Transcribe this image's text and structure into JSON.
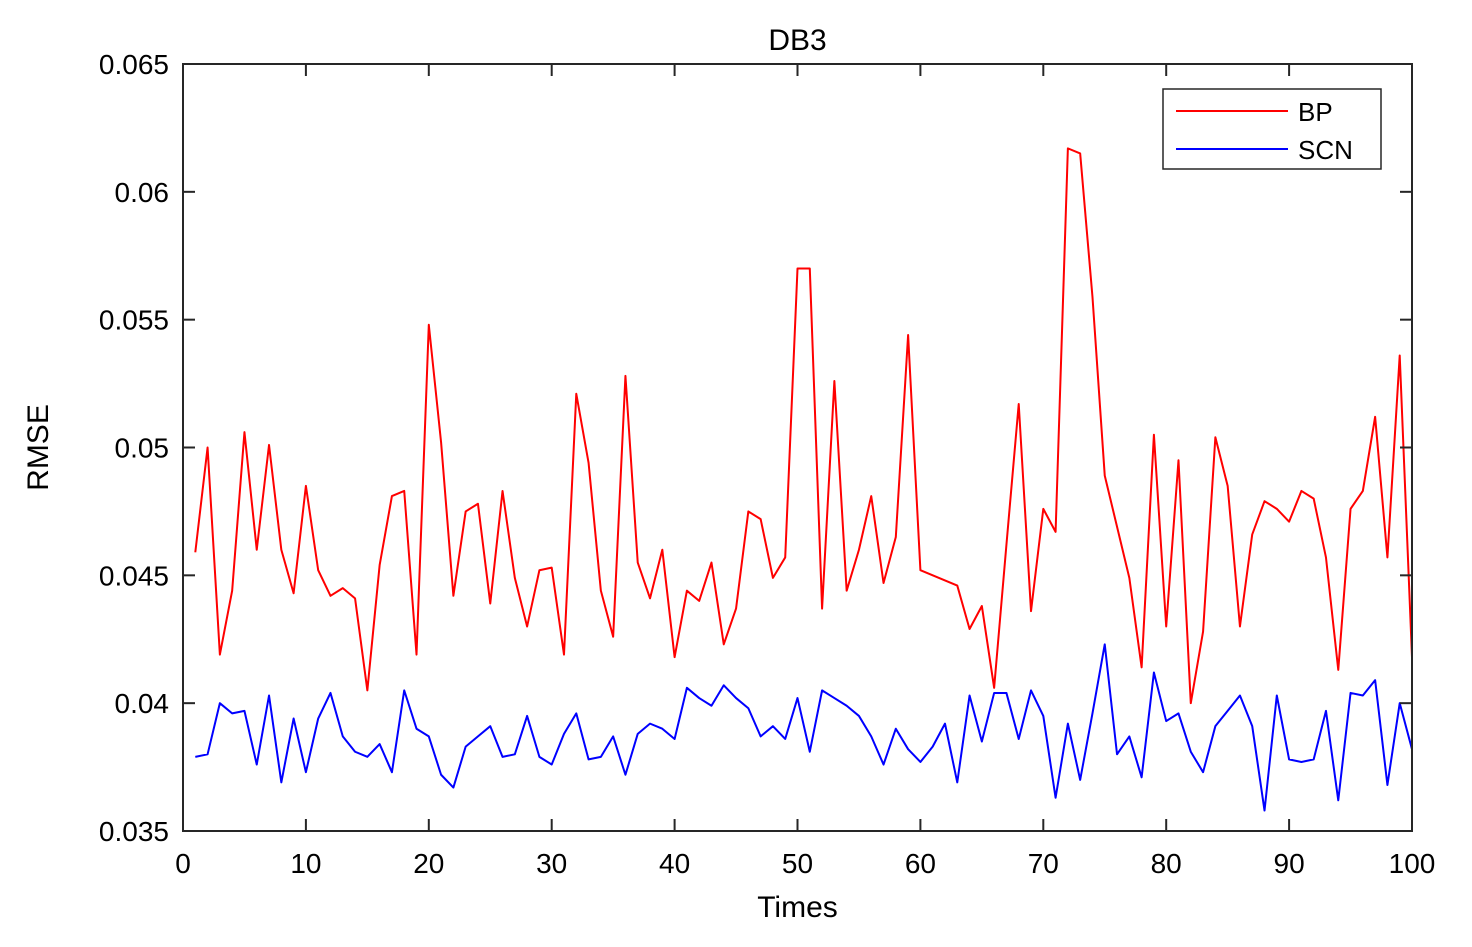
{
  "chart_data": {
    "type": "line",
    "title": "DB3",
    "xlabel": "Times",
    "ylabel": "RMSE",
    "xlim": [
      0,
      100
    ],
    "ylim": [
      0.035,
      0.065
    ],
    "xticks": [
      0,
      10,
      20,
      30,
      40,
      50,
      60,
      70,
      80,
      90,
      100
    ],
    "xtick_labels": [
      "0",
      "10",
      "20",
      "30",
      "40",
      "50",
      "60",
      "70",
      "80",
      "90",
      "100"
    ],
    "yticks": [
      0.035,
      0.04,
      0.045,
      0.05,
      0.055,
      0.06,
      0.065
    ],
    "ytick_labels": [
      "0.035",
      "0.04",
      "0.045",
      "0.05",
      "0.055",
      "0.06",
      "0.065"
    ],
    "grid": false,
    "legend_position": "top-right",
    "x": [
      1,
      2,
      3,
      4,
      5,
      6,
      7,
      8,
      9,
      10,
      11,
      12,
      13,
      14,
      15,
      16,
      17,
      18,
      19,
      20,
      21,
      22,
      23,
      24,
      25,
      26,
      27,
      28,
      29,
      30,
      31,
      32,
      33,
      34,
      35,
      36,
      37,
      38,
      39,
      40,
      41,
      42,
      43,
      44,
      45,
      46,
      47,
      48,
      49,
      50,
      51,
      52,
      53,
      54,
      55,
      56,
      57,
      58,
      59,
      60,
      61,
      62,
      63,
      64,
      65,
      66,
      67,
      68,
      69,
      70,
      71,
      72,
      73,
      74,
      75,
      76,
      77,
      78,
      79,
      80,
      81,
      82,
      83,
      84,
      85,
      86,
      87,
      88,
      89,
      90,
      91,
      92,
      93,
      94,
      95,
      96,
      97,
      98,
      99,
      100
    ],
    "series": [
      {
        "name": "BP",
        "color": "#ff0000",
        "values": [
          0.0459,
          0.05,
          0.0419,
          0.0444,
          0.0506,
          0.046,
          0.0501,
          0.046,
          0.0443,
          0.0485,
          0.0452,
          0.0442,
          0.0445,
          0.0441,
          0.0405,
          0.0454,
          0.0481,
          0.0483,
          0.0419,
          0.0548,
          0.0502,
          0.0442,
          0.0475,
          0.0478,
          0.0439,
          0.0483,
          0.0449,
          0.043,
          0.0452,
          0.0453,
          0.0419,
          0.0521,
          0.0494,
          0.0444,
          0.0426,
          0.0528,
          0.0455,
          0.0441,
          0.046,
          0.0418,
          0.0444,
          0.044,
          0.0455,
          0.0423,
          0.0437,
          0.0475,
          0.0472,
          0.0449,
          0.0457,
          0.057,
          0.057,
          0.0437,
          0.0526,
          0.0444,
          0.046,
          0.0481,
          0.0447,
          0.0465,
          0.0544,
          0.0452,
          0.045,
          0.0448,
          0.0446,
          0.0429,
          0.0438,
          0.0406,
          0.0462,
          0.0517,
          0.0436,
          0.0476,
          0.0467,
          0.0617,
          0.0615,
          0.0559,
          0.0489,
          0.0469,
          0.0449,
          0.0414,
          0.0505,
          0.043,
          0.0495,
          0.04,
          0.0428,
          0.0504,
          0.0485,
          0.043,
          0.0466,
          0.0479,
          0.0476,
          0.0471,
          0.0483,
          0.048,
          0.0457,
          0.0413,
          0.0476,
          0.0483,
          0.0512,
          0.0457,
          0.0536,
          0.0418
        ]
      },
      {
        "name": "SCN",
        "color": "#0000ff",
        "values": [
          0.0379,
          0.038,
          0.04,
          0.0396,
          0.0397,
          0.0376,
          0.0403,
          0.0369,
          0.0394,
          0.0373,
          0.0394,
          0.0404,
          0.0387,
          0.0381,
          0.0379,
          0.0384,
          0.0373,
          0.0405,
          0.039,
          0.0387,
          0.0372,
          0.0367,
          0.0383,
          0.0387,
          0.0391,
          0.0379,
          0.038,
          0.0395,
          0.0379,
          0.0376,
          0.0388,
          0.0396,
          0.0378,
          0.0379,
          0.0387,
          0.0372,
          0.0388,
          0.0392,
          0.039,
          0.0386,
          0.0406,
          0.0402,
          0.0399,
          0.0407,
          0.0402,
          0.0398,
          0.0387,
          0.0391,
          0.0386,
          0.0402,
          0.0381,
          0.0405,
          0.0402,
          0.0399,
          0.0395,
          0.0387,
          0.0376,
          0.039,
          0.0382,
          0.0377,
          0.0383,
          0.0392,
          0.0369,
          0.0403,
          0.0385,
          0.0404,
          0.0404,
          0.0386,
          0.0405,
          0.0395,
          0.0363,
          0.0392,
          0.037,
          0.0396,
          0.0423,
          0.038,
          0.0387,
          0.0371,
          0.0412,
          0.0393,
          0.0396,
          0.0381,
          0.0373,
          0.0391,
          0.0397,
          0.0403,
          0.0391,
          0.0358,
          0.0403,
          0.0378,
          0.0377,
          0.0378,
          0.0397,
          0.0362,
          0.0404,
          0.0403,
          0.0409,
          0.0368,
          0.04,
          0.0382
        ]
      }
    ]
  }
}
